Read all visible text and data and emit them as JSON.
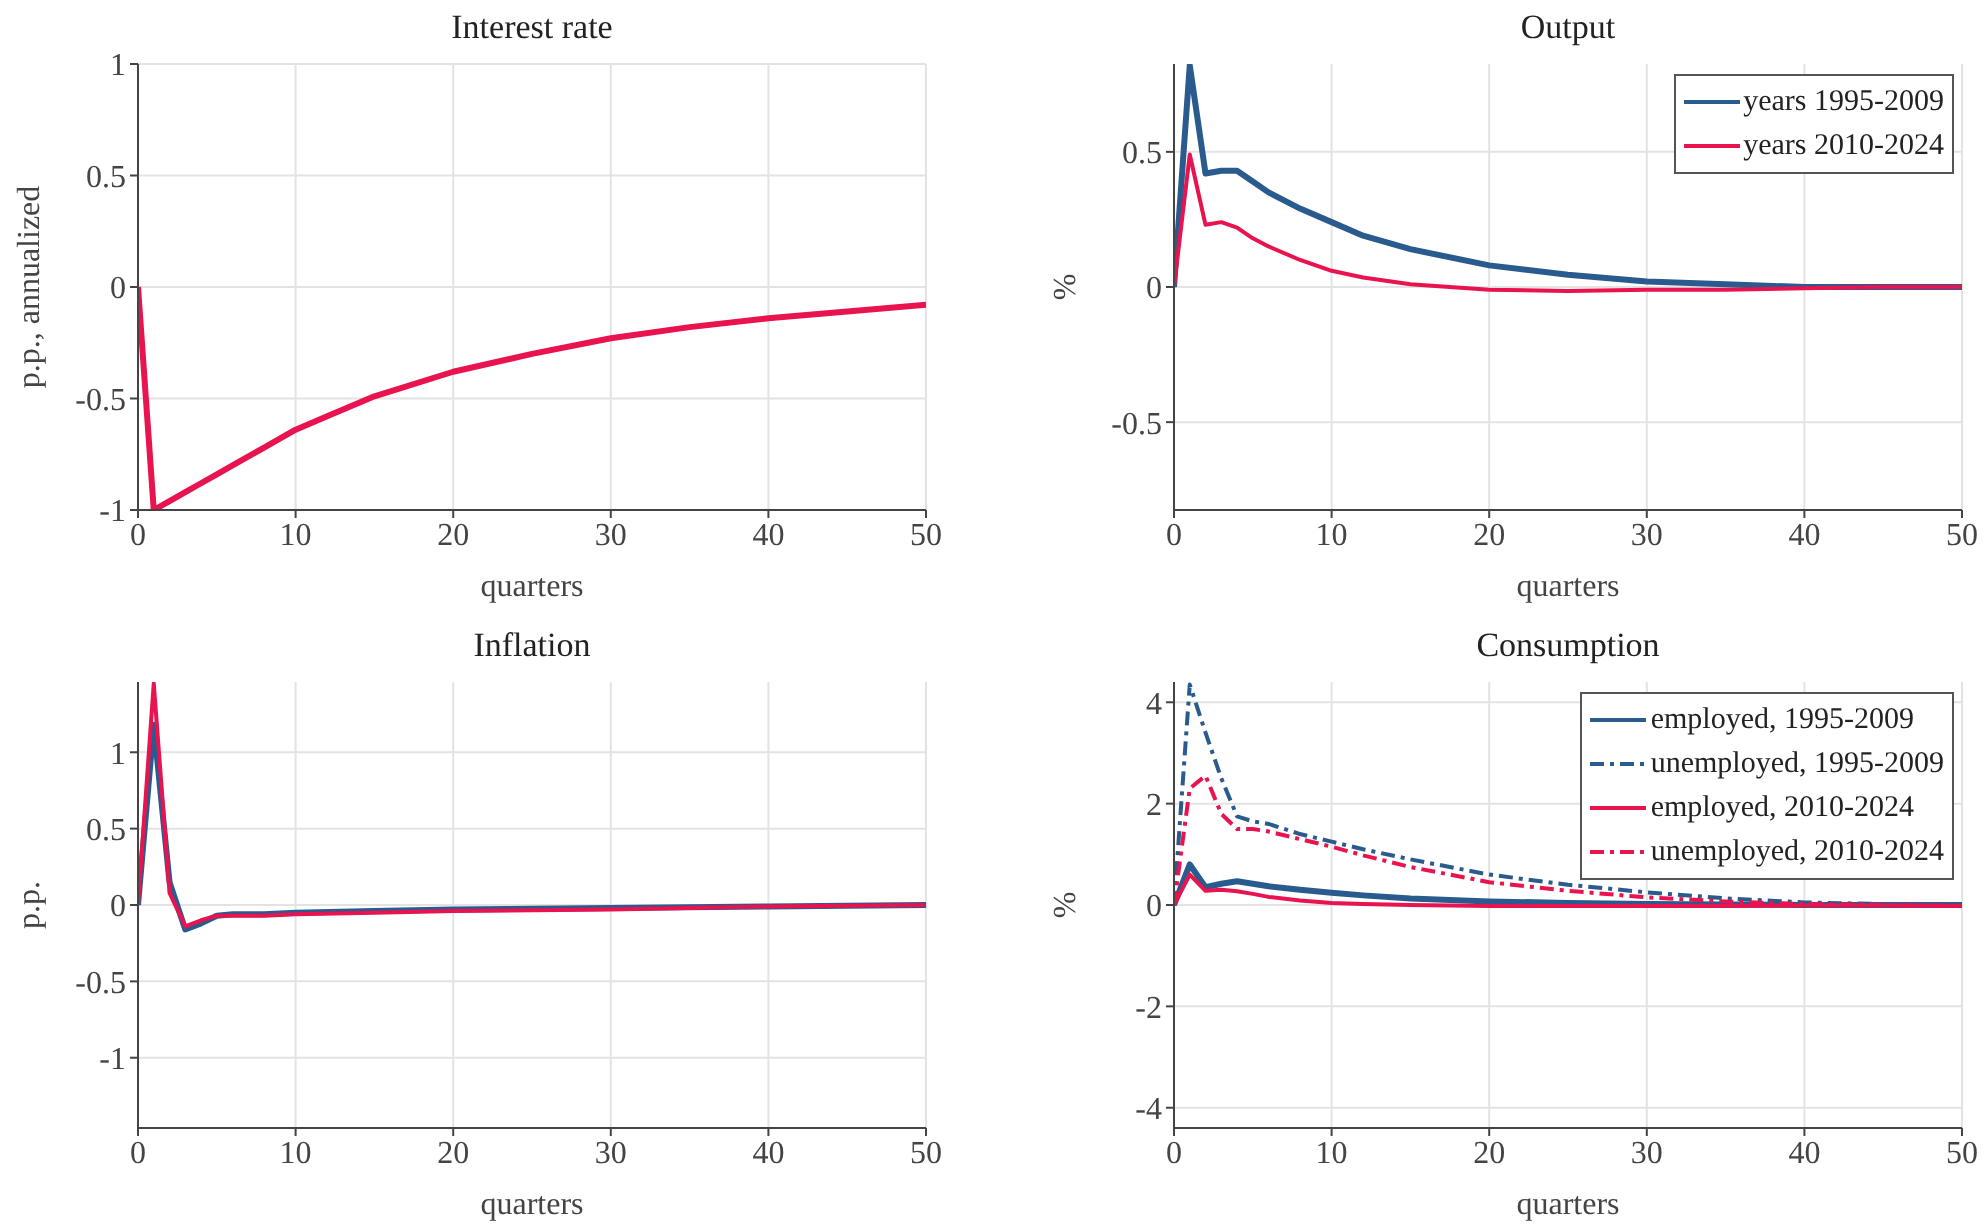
{
  "chart_data": [
    {
      "type": "line",
      "title": "Interest rate",
      "xlabel": "quarters",
      "ylabel": "p.p., annualized",
      "xlim": [
        0,
        50
      ],
      "xticks": [
        0,
        10,
        20,
        30,
        40,
        50
      ],
      "ylim": [
        -1,
        1
      ],
      "yticks": [
        -1,
        -0.5,
        0,
        0.5,
        1
      ],
      "grid": true,
      "line_style": "solid",
      "marker": "none",
      "x": [
        0,
        1,
        2,
        3,
        4,
        5,
        6,
        8,
        10,
        12,
        15,
        20,
        25,
        30,
        35,
        40,
        45,
        50
      ],
      "series": [
        {
          "color": "#e8134f",
          "values": [
            0,
            -1,
            -0.96,
            -0.92,
            -0.88,
            -0.84,
            -0.8,
            -0.72,
            -0.64,
            -0.58,
            -0.49,
            -0.38,
            -0.3,
            -0.23,
            -0.18,
            -0.14,
            -0.11,
            -0.08
          ]
        }
      ]
    },
    {
      "type": "line",
      "title": "Output",
      "xlabel": "quarters",
      "ylabel": "%",
      "xlim": [
        0,
        50
      ],
      "xticks": [
        0,
        10,
        20,
        30,
        40,
        50
      ],
      "ylim": [
        -0.825,
        0.825
      ],
      "yticks": [
        -0.5,
        0,
        0.5
      ],
      "grid": true,
      "legend": "top right",
      "line_style": "solid",
      "marker": "none",
      "x": [
        0,
        1,
        2,
        3,
        4,
        5,
        6,
        8,
        10,
        12,
        15,
        20,
        25,
        30,
        35,
        40,
        45,
        50
      ],
      "series": [
        {
          "name": "years 1995-2009",
          "color": "#2a5b8e",
          "values": [
            0,
            0.82,
            0.42,
            0.43,
            0.43,
            0.39,
            0.35,
            0.29,
            0.24,
            0.19,
            0.14,
            0.08,
            0.045,
            0.02,
            0.01,
            0,
            0,
            0
          ]
        },
        {
          "name": "years 2010-2024",
          "color": "#e8134f",
          "values": [
            0,
            0.49,
            0.23,
            0.24,
            0.22,
            0.18,
            0.15,
            0.1,
            0.06,
            0.035,
            0.01,
            -0.01,
            -0.015,
            -0.01,
            -0.01,
            -0.005,
            0,
            0
          ]
        }
      ]
    },
    {
      "type": "line",
      "title": "Inflation",
      "xlabel": "quarters",
      "ylabel": "p.p.",
      "xlim": [
        0,
        50
      ],
      "xticks": [
        0,
        10,
        20,
        30,
        40,
        50
      ],
      "ylim": [
        -1.46,
        1.46
      ],
      "yticks": [
        -1,
        -0.5,
        0,
        0.5,
        1
      ],
      "grid": true,
      "line_style": "solid",
      "marker": "none",
      "x": [
        0,
        1,
        2,
        3,
        4,
        5,
        6,
        8,
        10,
        15,
        20,
        30,
        40,
        50
      ],
      "series": [
        {
          "color": "#2a5b8e",
          "values": [
            0,
            1.18,
            0.15,
            -0.16,
            -0.12,
            -0.07,
            -0.06,
            -0.06,
            -0.05,
            -0.04,
            -0.03,
            -0.02,
            -0.01,
            0
          ]
        },
        {
          "color": "#e8134f",
          "values": [
            0,
            1.45,
            0.08,
            -0.14,
            -0.1,
            -0.07,
            -0.07,
            -0.07,
            -0.06,
            -0.05,
            -0.04,
            -0.03,
            -0.01,
            0
          ]
        }
      ]
    },
    {
      "type": "line",
      "title": "Consumption",
      "xlabel": "quarters",
      "ylabel": "%",
      "xlim": [
        0,
        50
      ],
      "xticks": [
        0,
        10,
        20,
        30,
        40,
        50
      ],
      "ylim": [
        -4.4,
        4.4
      ],
      "yticks": [
        -4,
        -2,
        0,
        2,
        4
      ],
      "grid": true,
      "legend": "top right",
      "marker": "none",
      "x": [
        0,
        1,
        2,
        3,
        4,
        5,
        6,
        8,
        10,
        12,
        15,
        20,
        25,
        30,
        35,
        40,
        45,
        50
      ],
      "series": [
        {
          "name": "employed, 1995-2009",
          "color": "#2a5b8e",
          "line_style": "solid",
          "values": [
            0,
            0.8,
            0.35,
            0.42,
            0.47,
            0.42,
            0.37,
            0.3,
            0.24,
            0.19,
            0.13,
            0.07,
            0.04,
            0.02,
            0.01,
            0,
            0,
            0
          ]
        },
        {
          "name": "unemployed, 1995-2009",
          "color": "#2a5b8e",
          "line_style": "dashed",
          "values": [
            0,
            4.35,
            3.4,
            2.5,
            1.75,
            1.65,
            1.6,
            1.4,
            1.25,
            1.1,
            0.9,
            0.6,
            0.4,
            0.25,
            0.13,
            0.05,
            0.02,
            0
          ]
        },
        {
          "name": "employed, 2010-2024",
          "color": "#e8134f",
          "line_style": "solid",
          "values": [
            0,
            0.6,
            0.28,
            0.3,
            0.27,
            0.22,
            0.16,
            0.09,
            0.04,
            0.02,
            0,
            -0.02,
            -0.02,
            -0.02,
            -0.02,
            -0.01,
            -0.01,
            -0.02
          ]
        },
        {
          "name": "unemployed, 2010-2024",
          "color": "#e8134f",
          "line_style": "dashed",
          "values": [
            0,
            2.3,
            2.55,
            1.8,
            1.5,
            1.5,
            1.45,
            1.3,
            1.15,
            0.98,
            0.75,
            0.45,
            0.28,
            0.15,
            0.07,
            0.02,
            0,
            -0.02
          ]
        }
      ]
    }
  ]
}
